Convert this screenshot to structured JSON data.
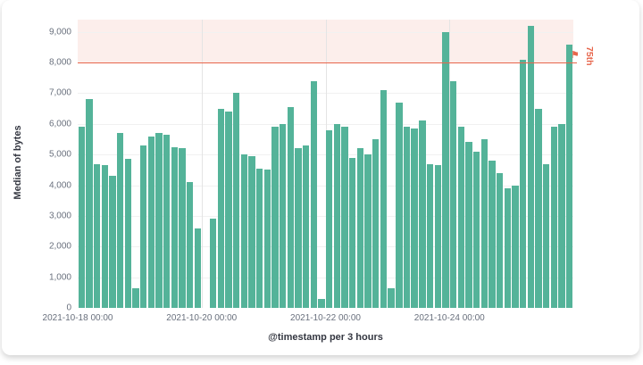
{
  "chart_data": {
    "type": "bar",
    "title": "",
    "xlabel": "@timestamp per 3 hours",
    "ylabel": "Median of bytes",
    "ylim": [
      0,
      9400
    ],
    "y_ticks": [
      0,
      1000,
      2000,
      3000,
      4000,
      5000,
      6000,
      7000,
      8000,
      9000
    ],
    "x_ticks": [
      {
        "label": "2021-10-18 00:00",
        "index": 0
      },
      {
        "label": "2021-10-20 00:00",
        "index": 16
      },
      {
        "label": "2021-10-22 00:00",
        "index": 32
      },
      {
        "label": "2021-10-24 00:00",
        "index": 48
      }
    ],
    "bar_color": "#54B399",
    "grid": {
      "horizontal": true,
      "vertical": true
    },
    "legend": "none",
    "threshold": {
      "value": 8000,
      "label": "75th",
      "line_color": "#E7664C",
      "band_fill": "rgba(231,102,76,0.11)",
      "flag_icon_glyph": "⚑"
    },
    "values": [
      5900,
      6800,
      4700,
      4650,
      4300,
      5700,
      4850,
      650,
      5300,
      5600,
      5700,
      5650,
      5250,
      5200,
      4100,
      2600,
      0,
      2900,
      6500,
      6400,
      7000,
      5000,
      4950,
      4550,
      4500,
      5900,
      6000,
      6550,
      5200,
      5300,
      7400,
      300,
      5800,
      6000,
      5900,
      4900,
      5200,
      5000,
      5500,
      7100,
      650,
      6700,
      5900,
      5850,
      6100,
      4700,
      4650,
      9000,
      7400,
      5900,
      5400,
      5100,
      5500,
      4800,
      4400,
      3900,
      4000,
      8100,
      9200,
      6500,
      4700,
      5900,
      6000,
      8600
    ]
  }
}
